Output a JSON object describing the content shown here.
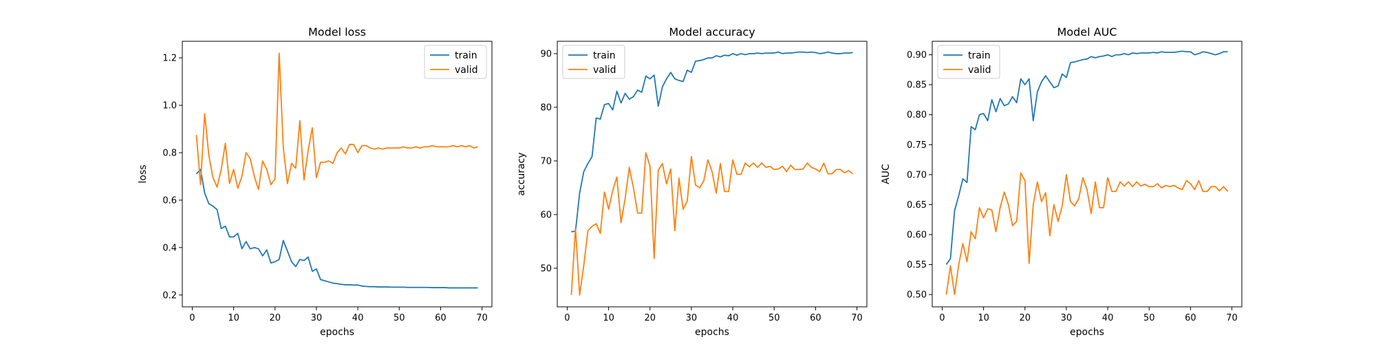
{
  "colors": {
    "train": "#1f77b4",
    "valid": "#ff7f0e"
  },
  "chart_data": [
    {
      "type": "line",
      "title": "Model loss",
      "xlabel": "epochs",
      "ylabel": "loss",
      "xlim": [
        -2.4,
        72.4
      ],
      "ylim": [
        0.15,
        1.27
      ],
      "xticks": [
        0,
        10,
        20,
        30,
        40,
        50,
        60,
        70
      ],
      "yticks": [
        0.2,
        0.4,
        0.6,
        0.8,
        1.0,
        1.2
      ],
      "ytick_labels": [
        "0.2",
        "0.4",
        "0.6",
        "0.8",
        "1.0",
        "1.2"
      ],
      "legend": "top-right",
      "x": [
        1,
        2,
        3,
        4,
        5,
        6,
        7,
        8,
        9,
        10,
        11,
        12,
        13,
        14,
        15,
        16,
        17,
        18,
        19,
        20,
        21,
        22,
        23,
        24,
        25,
        26,
        27,
        28,
        29,
        30,
        31,
        32,
        33,
        34,
        35,
        36,
        37,
        38,
        39,
        40,
        41,
        42,
        43,
        44,
        45,
        46,
        47,
        48,
        49,
        50,
        51,
        52,
        53,
        54,
        55,
        56,
        57,
        58,
        59,
        60,
        61,
        62,
        63,
        64,
        65,
        66,
        67,
        68,
        69
      ],
      "series": [
        {
          "name": "train",
          "values": [
            0.71,
            0.73,
            0.63,
            0.585,
            0.575,
            0.56,
            0.48,
            0.49,
            0.445,
            0.445,
            0.46,
            0.395,
            0.425,
            0.395,
            0.4,
            0.395,
            0.365,
            0.39,
            0.335,
            0.34,
            0.35,
            0.43,
            0.385,
            0.34,
            0.32,
            0.35,
            0.345,
            0.36,
            0.3,
            0.31,
            0.265,
            0.26,
            0.255,
            0.25,
            0.248,
            0.245,
            0.243,
            0.243,
            0.242,
            0.242,
            0.238,
            0.236,
            0.235,
            0.235,
            0.234,
            0.234,
            0.234,
            0.233,
            0.233,
            0.233,
            0.233,
            0.232,
            0.232,
            0.232,
            0.232,
            0.232,
            0.232,
            0.231,
            0.231,
            0.231,
            0.231,
            0.23,
            0.23,
            0.23,
            0.23,
            0.23,
            0.23,
            0.23,
            0.23
          ]
        },
        {
          "name": "valid",
          "values": [
            0.875,
            0.665,
            0.965,
            0.79,
            0.695,
            0.655,
            0.73,
            0.84,
            0.67,
            0.73,
            0.65,
            0.7,
            0.8,
            0.775,
            0.7,
            0.645,
            0.765,
            0.73,
            0.665,
            0.69,
            1.22,
            0.82,
            0.67,
            0.755,
            0.735,
            0.935,
            0.685,
            0.81,
            0.905,
            0.695,
            0.76,
            0.76,
            0.765,
            0.755,
            0.8,
            0.82,
            0.795,
            0.835,
            0.835,
            0.8,
            0.83,
            0.83,
            0.82,
            0.815,
            0.82,
            0.815,
            0.82,
            0.82,
            0.82,
            0.82,
            0.825,
            0.82,
            0.82,
            0.825,
            0.82,
            0.825,
            0.825,
            0.83,
            0.825,
            0.825,
            0.825,
            0.825,
            0.83,
            0.825,
            0.83,
            0.825,
            0.83,
            0.82,
            0.825
          ]
        }
      ]
    },
    {
      "type": "line",
      "title": "Model accuracy",
      "xlabel": "epochs",
      "ylabel": "accuracy",
      "xlim": [
        -2.4,
        72.4
      ],
      "ylim": [
        42.8,
        92.3
      ],
      "xticks": [
        0,
        10,
        20,
        30,
        40,
        50,
        60,
        70
      ],
      "yticks": [
        50,
        60,
        70,
        80,
        90
      ],
      "ytick_labels": [
        "50",
        "60",
        "70",
        "80",
        "90"
      ],
      "legend": "top-left",
      "x": [
        1,
        2,
        3,
        4,
        5,
        6,
        7,
        8,
        9,
        10,
        11,
        12,
        13,
        14,
        15,
        16,
        17,
        18,
        19,
        20,
        21,
        22,
        23,
        24,
        25,
        26,
        27,
        28,
        29,
        30,
        31,
        32,
        33,
        34,
        35,
        36,
        37,
        38,
        39,
        40,
        41,
        42,
        43,
        44,
        45,
        46,
        47,
        48,
        49,
        50,
        51,
        52,
        53,
        54,
        55,
        56,
        57,
        58,
        59,
        60,
        61,
        62,
        63,
        64,
        65,
        66,
        67,
        68,
        69
      ],
      "series": [
        {
          "name": "train",
          "values": [
            56.8,
            56.9,
            64.0,
            68.0,
            69.5,
            70.8,
            78.0,
            77.8,
            80.5,
            80.7,
            79.5,
            83.0,
            80.8,
            82.6,
            81.5,
            82.0,
            83.2,
            82.8,
            85.8,
            85.3,
            86.0,
            80.2,
            83.8,
            85.3,
            86.5,
            85.3,
            85.0,
            84.8,
            86.9,
            86.5,
            88.6,
            88.7,
            88.9,
            89.2,
            89.2,
            89.6,
            89.4,
            89.7,
            89.6,
            90.0,
            89.7,
            90.0,
            89.8,
            90.0,
            90.0,
            90.1,
            90.0,
            90.1,
            90.1,
            90.1,
            90.3,
            90.0,
            90.1,
            90.1,
            90.2,
            90.3,
            90.3,
            90.2,
            90.3,
            90.2,
            90.0,
            90.1,
            90.3,
            90.1,
            90.0,
            90.0,
            90.1,
            90.1,
            90.2
          ]
        },
        {
          "name": "valid",
          "values": [
            45.0,
            57.5,
            45.0,
            50.5,
            57.0,
            57.8,
            58.3,
            56.5,
            64.2,
            61.0,
            64.5,
            67.0,
            58.5,
            63.0,
            68.8,
            65.0,
            60.3,
            60.3,
            71.5,
            69.0,
            51.8,
            68.3,
            69.5,
            65.7,
            68.5,
            57.0,
            66.8,
            61.0,
            62.5,
            70.8,
            65.5,
            65.0,
            66.3,
            70.2,
            68.0,
            64.0,
            69.5,
            64.3,
            64.3,
            70.2,
            67.5,
            67.5,
            69.6,
            68.9,
            69.6,
            68.8,
            69.6,
            68.8,
            69.0,
            68.4,
            68.5,
            69.0,
            68.0,
            69.2,
            68.4,
            68.4,
            68.5,
            69.6,
            68.8,
            68.5,
            68.0,
            69.6,
            67.6,
            67.6,
            68.4,
            68.4,
            67.8,
            68.2,
            67.6
          ]
        }
      ]
    },
    {
      "type": "line",
      "title": "Model AUC",
      "xlabel": "epochs",
      "ylabel": "AUC",
      "xlim": [
        -2.4,
        72.4
      ],
      "ylim": [
        0.4795,
        0.9225
      ],
      "xticks": [
        0,
        10,
        20,
        30,
        40,
        50,
        60,
        70
      ],
      "yticks": [
        0.5,
        0.55,
        0.6,
        0.65,
        0.7,
        0.75,
        0.8,
        0.85,
        0.9
      ],
      "ytick_labels": [
        "0.50",
        "0.55",
        "0.60",
        "0.65",
        "0.70",
        "0.75",
        "0.80",
        "0.85",
        "0.90"
      ],
      "legend": "top-left",
      "x": [
        1,
        2,
        3,
        4,
        5,
        6,
        7,
        8,
        9,
        10,
        11,
        12,
        13,
        14,
        15,
        16,
        17,
        18,
        19,
        20,
        21,
        22,
        23,
        24,
        25,
        26,
        27,
        28,
        29,
        30,
        31,
        32,
        33,
        34,
        35,
        36,
        37,
        38,
        39,
        40,
        41,
        42,
        43,
        44,
        45,
        46,
        47,
        48,
        49,
        50,
        51,
        52,
        53,
        54,
        55,
        56,
        57,
        58,
        59,
        60,
        61,
        62,
        63,
        64,
        65,
        66,
        67,
        68,
        69
      ],
      "series": [
        {
          "name": "train",
          "values": [
            0.55,
            0.56,
            0.64,
            0.665,
            0.693,
            0.687,
            0.78,
            0.775,
            0.8,
            0.802,
            0.79,
            0.825,
            0.805,
            0.827,
            0.815,
            0.818,
            0.83,
            0.82,
            0.86,
            0.85,
            0.86,
            0.79,
            0.838,
            0.855,
            0.865,
            0.855,
            0.845,
            0.848,
            0.868,
            0.862,
            0.887,
            0.888,
            0.89,
            0.892,
            0.893,
            0.897,
            0.895,
            0.897,
            0.898,
            0.9,
            0.897,
            0.9,
            0.9,
            0.902,
            0.9,
            0.903,
            0.902,
            0.903,
            0.903,
            0.903,
            0.904,
            0.903,
            0.905,
            0.904,
            0.904,
            0.904,
            0.905,
            0.906,
            0.905,
            0.905,
            0.9,
            0.902,
            0.905,
            0.904,
            0.902,
            0.9,
            0.902,
            0.905,
            0.905
          ]
        },
        {
          "name": "valid",
          "values": [
            0.5,
            0.548,
            0.5,
            0.55,
            0.585,
            0.555,
            0.605,
            0.593,
            0.645,
            0.628,
            0.643,
            0.641,
            0.605,
            0.645,
            0.671,
            0.65,
            0.615,
            0.622,
            0.703,
            0.69,
            0.552,
            0.65,
            0.688,
            0.655,
            0.67,
            0.598,
            0.65,
            0.622,
            0.648,
            0.7,
            0.655,
            0.648,
            0.66,
            0.695,
            0.675,
            0.635,
            0.688,
            0.645,
            0.645,
            0.695,
            0.672,
            0.672,
            0.688,
            0.681,
            0.688,
            0.68,
            0.688,
            0.681,
            0.684,
            0.68,
            0.68,
            0.685,
            0.678,
            0.682,
            0.68,
            0.682,
            0.678,
            0.675,
            0.69,
            0.685,
            0.675,
            0.69,
            0.672,
            0.672,
            0.68,
            0.68,
            0.673,
            0.68,
            0.672
          ]
        }
      ]
    }
  ]
}
